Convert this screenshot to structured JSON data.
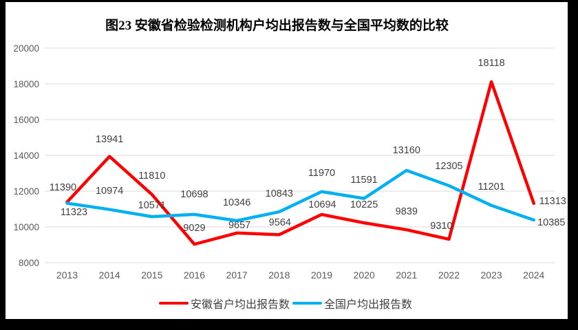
{
  "title": "图23 安徽省检验检测机构户均出报告数与全国平均数的比较",
  "chart_data": {
    "type": "line",
    "title": "图23 安徽省检验检测机构户均出报告数与全国平均数的比较",
    "categories": [
      "2013",
      "2014",
      "2015",
      "2016",
      "2017",
      "2018",
      "2019",
      "2020",
      "2021",
      "2022",
      "2023",
      "2024"
    ],
    "series": [
      {
        "name": "安徽省户均出报告数",
        "color": "#FF0000",
        "values": [
          11390,
          13941,
          11810,
          9029,
          9657,
          9564,
          10694,
          10225,
          9839,
          9310,
          18118,
          11313
        ]
      },
      {
        "name": "全国户均出报告数",
        "color": "#00B0F0",
        "values": [
          11323,
          10974,
          10571,
          10698,
          10346,
          10843,
          11970,
          11591,
          13160,
          12305,
          11201,
          10385
        ]
      }
    ],
    "ylim": [
      8000,
      20000
    ],
    "ytick_step": 2000,
    "yticks": [
      20000,
      18000,
      16000,
      14000,
      12000,
      10000,
      8000
    ],
    "grid": true,
    "gridline_color": "#D9D9D9",
    "data_labels": true,
    "legend_position": "bottom"
  }
}
